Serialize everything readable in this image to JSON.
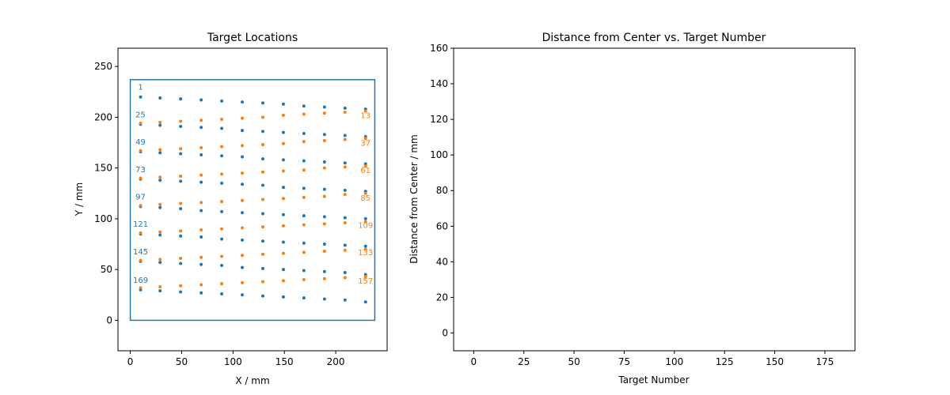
{
  "colors": {
    "blue": "#1f77b4",
    "orange": "#ff7f0e"
  },
  "chart_data": [
    {
      "type": "scatter",
      "title": "Target Locations",
      "xlabel": "X / mm",
      "ylabel": "Y / mm",
      "xlim": [
        -12,
        250
      ],
      "ylim": [
        -30,
        268
      ],
      "xticks": [
        0,
        50,
        100,
        150,
        200
      ],
      "yticks": [
        0,
        50,
        100,
        150,
        200,
        250
      ],
      "grid": false,
      "boundary_rect": {
        "x0": 0,
        "x1": 238,
        "y0": 0,
        "y1": 237
      },
      "series": [
        {
          "color": "blue",
          "x": [
            10,
            29,
            49,
            69,
            89,
            109,
            129,
            149,
            169,
            189,
            209,
            229
          ],
          "rows_y": [
            [
              220,
              219,
              218,
              217,
              216,
              215,
              214,
              213,
              211,
              210,
              209,
              208
            ],
            [
              193,
              192,
              191,
              190,
              189,
              187,
              186,
              185,
              184,
              183,
              182,
              181
            ],
            [
              166,
              165,
              164,
              163,
              162,
              161,
              159,
              158,
              157,
              156,
              155,
              154
            ],
            [
              139,
              138,
              137,
              136,
              135,
              134,
              133,
              131,
              130,
              129,
              128,
              127
            ],
            [
              112,
              111,
              110,
              108,
              107,
              106,
              105,
              104,
              103,
              102,
              101,
              100
            ],
            [
              85,
              84,
              83,
              82,
              80,
              79,
              78,
              77,
              76,
              75,
              74,
              73
            ],
            [
              58,
              57,
              56,
              55,
              54,
              52,
              51,
              50,
              49,
              48,
              47,
              45
            ],
            [
              30,
              29,
              28,
              27,
              26,
              25,
              24,
              23,
              22,
              21,
              20,
              18
            ]
          ]
        },
        {
          "color": "orange",
          "x": [
            10,
            29,
            49,
            69,
            89,
            109,
            129,
            149,
            169,
            189,
            209,
            229
          ],
          "rows_y": [
            [
              194,
              195,
              196,
              197,
              198,
              199,
              200,
              202,
              203,
              204,
              205,
              206
            ],
            [
              167,
              168,
              169,
              170,
              171,
              172,
              173,
              174,
              176,
              177,
              178,
              179
            ],
            [
              140,
              141,
              142,
              143,
              144,
              145,
              146,
              147,
              148,
              150,
              151,
              152
            ],
            [
              113,
              114,
              115,
              116,
              117,
              118,
              119,
              120,
              121,
              122,
              124,
              125
            ],
            [
              86,
              87,
              88,
              89,
              90,
              91,
              92,
              93,
              94,
              95,
              96,
              97
            ],
            [
              59,
              60,
              61,
              62,
              63,
              64,
              65,
              66,
              67,
              68,
              69,
              70
            ],
            [
              32,
              33,
              34,
              35,
              36,
              37,
              38,
              39,
              40,
              41,
              42,
              43
            ]
          ]
        }
      ],
      "annotations": [
        {
          "text": "1",
          "x": 10,
          "y": 227,
          "color": "blue"
        },
        {
          "text": "25",
          "x": 10,
          "y": 200,
          "color": "blue"
        },
        {
          "text": "49",
          "x": 10,
          "y": 173,
          "color": "blue"
        },
        {
          "text": "73",
          "x": 10,
          "y": 146,
          "color": "blue"
        },
        {
          "text": "97",
          "x": 10,
          "y": 119,
          "color": "blue"
        },
        {
          "text": "121",
          "x": 10,
          "y": 92,
          "color": "blue"
        },
        {
          "text": "145",
          "x": 10,
          "y": 65,
          "color": "blue"
        },
        {
          "text": "169",
          "x": 10,
          "y": 37,
          "color": "blue"
        },
        {
          "text": "13",
          "x": 229,
          "y": 199,
          "color": "orange"
        },
        {
          "text": "37",
          "x": 229,
          "y": 172,
          "color": "orange"
        },
        {
          "text": "61",
          "x": 229,
          "y": 145,
          "color": "orange"
        },
        {
          "text": "85",
          "x": 229,
          "y": 118,
          "color": "orange"
        },
        {
          "text": "109",
          "x": 229,
          "y": 91,
          "color": "orange"
        },
        {
          "text": "133",
          "x": 229,
          "y": 64,
          "color": "orange"
        },
        {
          "text": "157",
          "x": 229,
          "y": 36,
          "color": "orange"
        }
      ]
    },
    {
      "type": "scatter",
      "title": "Distance from Center vs. Target Number",
      "xlabel": "Target Number",
      "ylabel": "Distance from Center / mm",
      "xlim": [
        -10,
        190
      ],
      "ylim": [
        -10,
        160
      ],
      "xticks": [
        0,
        25,
        50,
        75,
        100,
        125,
        150,
        175
      ],
      "yticks": [
        0,
        20,
        40,
        60,
        80,
        100,
        120,
        140,
        160
      ],
      "grid": false,
      "series": []
    }
  ]
}
